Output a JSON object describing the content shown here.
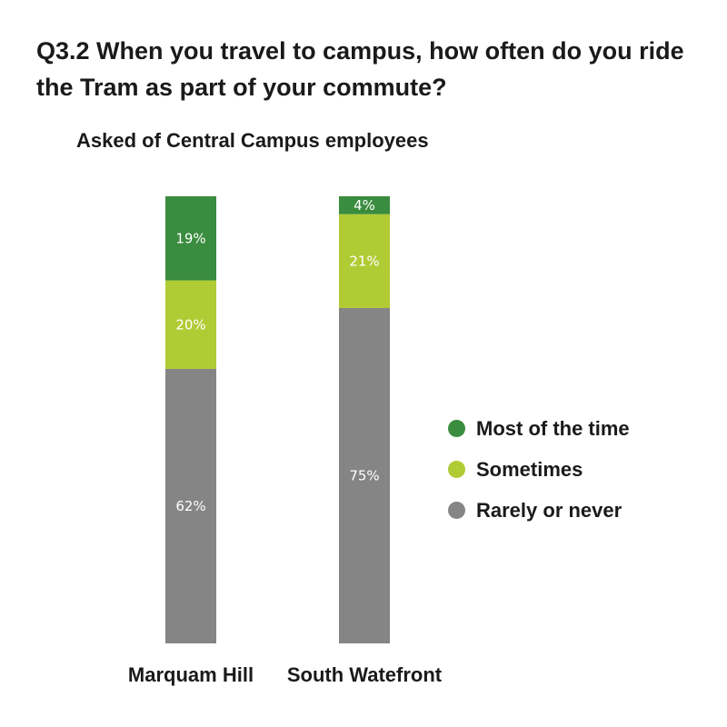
{
  "title": "Q3.2 When you travel to campus, how often do you ride the Tram as part of your commute?",
  "subtitle": "Asked of Central Campus employees",
  "chart_data": {
    "type": "bar",
    "stacked": true,
    "orientation": "vertical",
    "categories": [
      "Marquam Hill",
      "South Watefront"
    ],
    "series": [
      {
        "name": "Rarely or never",
        "values": [
          62,
          75
        ],
        "labels": [
          "62%",
          "75%"
        ],
        "color": "#858585"
      },
      {
        "name": "Sometimes",
        "values": [
          20,
          21
        ],
        "labels": [
          "20%",
          "21%"
        ],
        "color": "#b1cb35"
      },
      {
        "name": "Most of the time",
        "values": [
          19,
          4
        ],
        "labels": [
          "19%",
          "4%"
        ],
        "color": "#3a8c3f"
      }
    ],
    "unit": "%",
    "legend_position": "right",
    "grid": false
  },
  "legend": {
    "items": [
      {
        "label": "Most of the time",
        "color": "#3a8c3f"
      },
      {
        "label": "Sometimes",
        "color": "#b1cb35"
      },
      {
        "label": "Rarely or never",
        "color": "#858585"
      }
    ]
  }
}
